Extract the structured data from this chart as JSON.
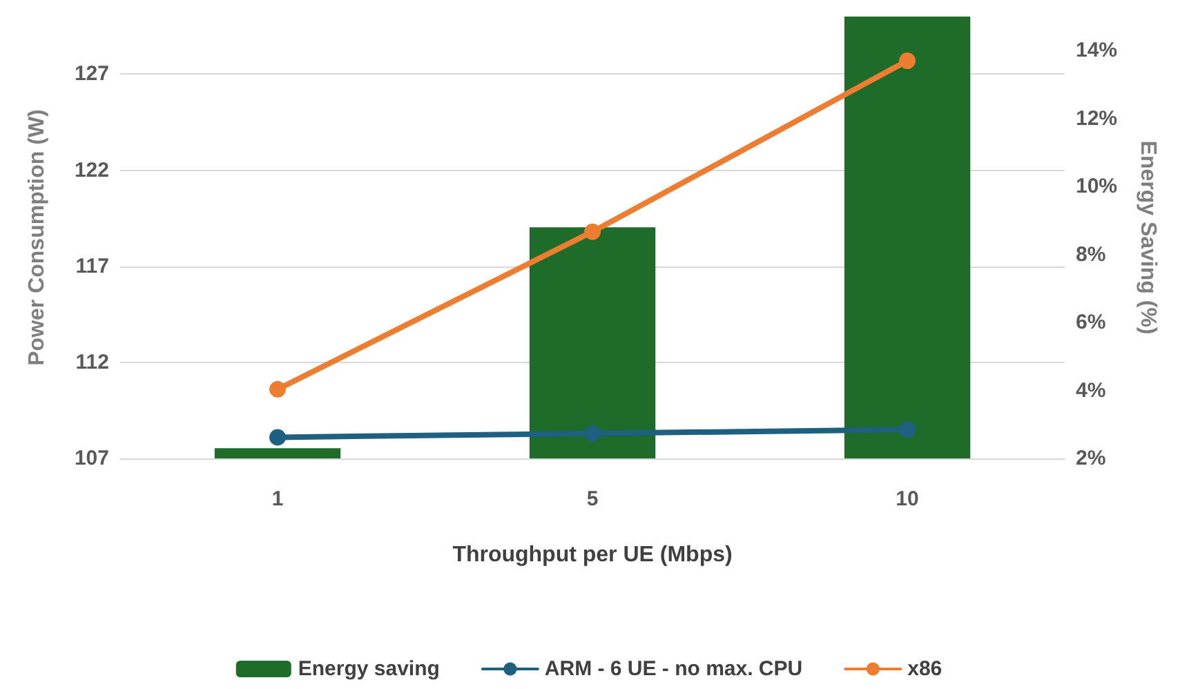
{
  "chart_data": {
    "type": "bar",
    "categories": [
      "1",
      "5",
      "10"
    ],
    "xlabel": "Throughput per UE (Mbps)",
    "ylabel": "Power Consumption (W)",
    "y2label": "Energy Saving (%)",
    "series": [
      {
        "name": "Energy saving",
        "axis": "y2",
        "color": "#1e6b2a",
        "values": [
          2.3,
          8.8,
          15.0
        ]
      },
      {
        "name": "ARM - 6 UE - no max. CPU",
        "type": "line",
        "color": "#1f5f80",
        "values": [
          108.1,
          108.3,
          108.5
        ]
      },
      {
        "name": "x86",
        "type": "line",
        "color": "#ed7d31",
        "values": [
          110.6,
          118.8,
          127.7
        ]
      }
    ],
    "ylim": [
      107,
      130
    ],
    "yticks": [
      107,
      112,
      117,
      122,
      127
    ],
    "y2lim": [
      2,
      15
    ],
    "y2ticks": [
      {
        "value": 2,
        "label": "2%"
      },
      {
        "value": 4,
        "label": "4%"
      },
      {
        "value": 6,
        "label": "6%"
      },
      {
        "value": 8,
        "label": "8%"
      },
      {
        "value": 10,
        "label": "10%"
      },
      {
        "value": 12,
        "label": "12%"
      },
      {
        "value": 14,
        "label": "14%"
      }
    ],
    "grid": "y",
    "legend": "bottom",
    "marker": "circle",
    "line_style": "solid"
  }
}
